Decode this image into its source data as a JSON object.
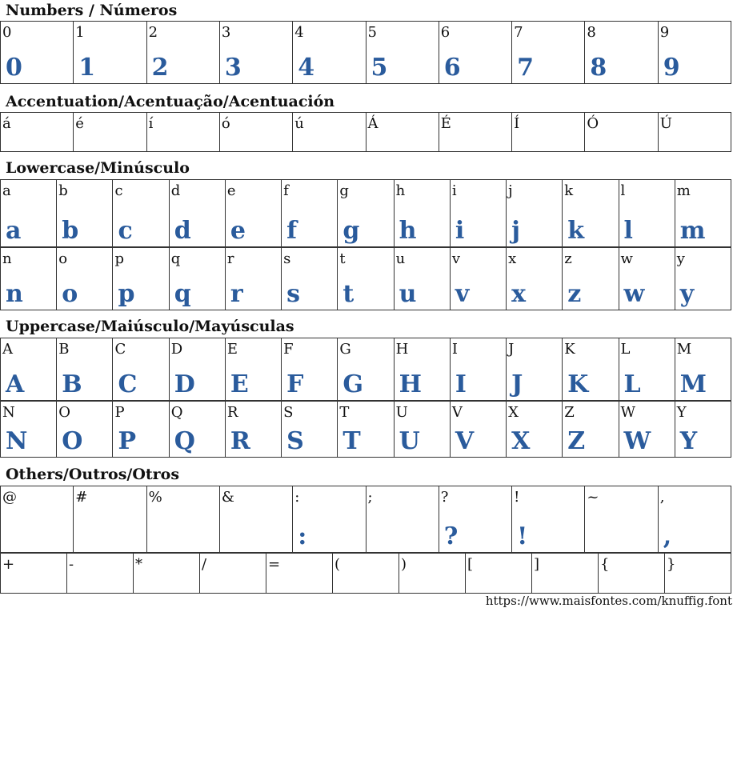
{
  "sections": [
    {
      "title": "Numbers / Números",
      "rows": [
        {
          "cols": 10,
          "h": 78,
          "glyph": true,
          "chars": [
            "0",
            "1",
            "2",
            "3",
            "4",
            "5",
            "6",
            "7",
            "8",
            "9"
          ]
        }
      ]
    },
    {
      "title": "Accentuation/Acentuação/Acentuación",
      "rows": [
        {
          "cols": 10,
          "h": 49,
          "glyph": false,
          "chars": [
            "á",
            "é",
            "í",
            "ó",
            "ú",
            "Á",
            "É",
            "Í",
            "Ó",
            "Ú"
          ]
        }
      ]
    },
    {
      "title": "Lowercase/Minúsculo",
      "rows": [
        {
          "cols": 13,
          "h": 84,
          "glyph": true,
          "chars": [
            "a",
            "b",
            "c",
            "d",
            "e",
            "f",
            "g",
            "h",
            "i",
            "j",
            "k",
            "l",
            "m"
          ]
        },
        {
          "cols": 13,
          "h": 79,
          "glyph": true,
          "chars": [
            "n",
            "o",
            "p",
            "q",
            "r",
            "s",
            "t",
            "u",
            "v",
            "x",
            "z",
            "w",
            "y"
          ]
        }
      ]
    },
    {
      "title": "Uppercase/Maiúsculo/Mayúsculas",
      "rows": [
        {
          "cols": 13,
          "h": 78,
          "glyph": true,
          "chars": [
            "A",
            "B",
            "C",
            "D",
            "E",
            "F",
            "G",
            "H",
            "I",
            "J",
            "K",
            "L",
            "M"
          ]
        },
        {
          "cols": 13,
          "h": 71,
          "glyph": true,
          "chars": [
            "N",
            "O",
            "P",
            "Q",
            "R",
            "S",
            "T",
            "U",
            "V",
            "X",
            "Z",
            "W",
            "Y"
          ]
        }
      ]
    },
    {
      "title": "Others/Outros/Otros",
      "rows": [
        {
          "cols": 10,
          "h": 83,
          "glyph": true,
          "chars": [
            "@",
            "#",
            "%",
            "&",
            ":",
            ";",
            "?",
            "!",
            "~",
            ","
          ],
          "shown": [
            ":",
            "?",
            "!",
            ","
          ]
        },
        {
          "cols": 11,
          "h": 51,
          "glyph": false,
          "chars": [
            "+",
            "-",
            "*",
            "/",
            "=",
            "(",
            ")",
            "[",
            "]",
            "{",
            "}"
          ]
        }
      ]
    }
  ],
  "footer": "https://www.maisfontes.com/knuffig.font",
  "colors": {
    "glyph": "#2a5b9c",
    "border": "#333333"
  }
}
